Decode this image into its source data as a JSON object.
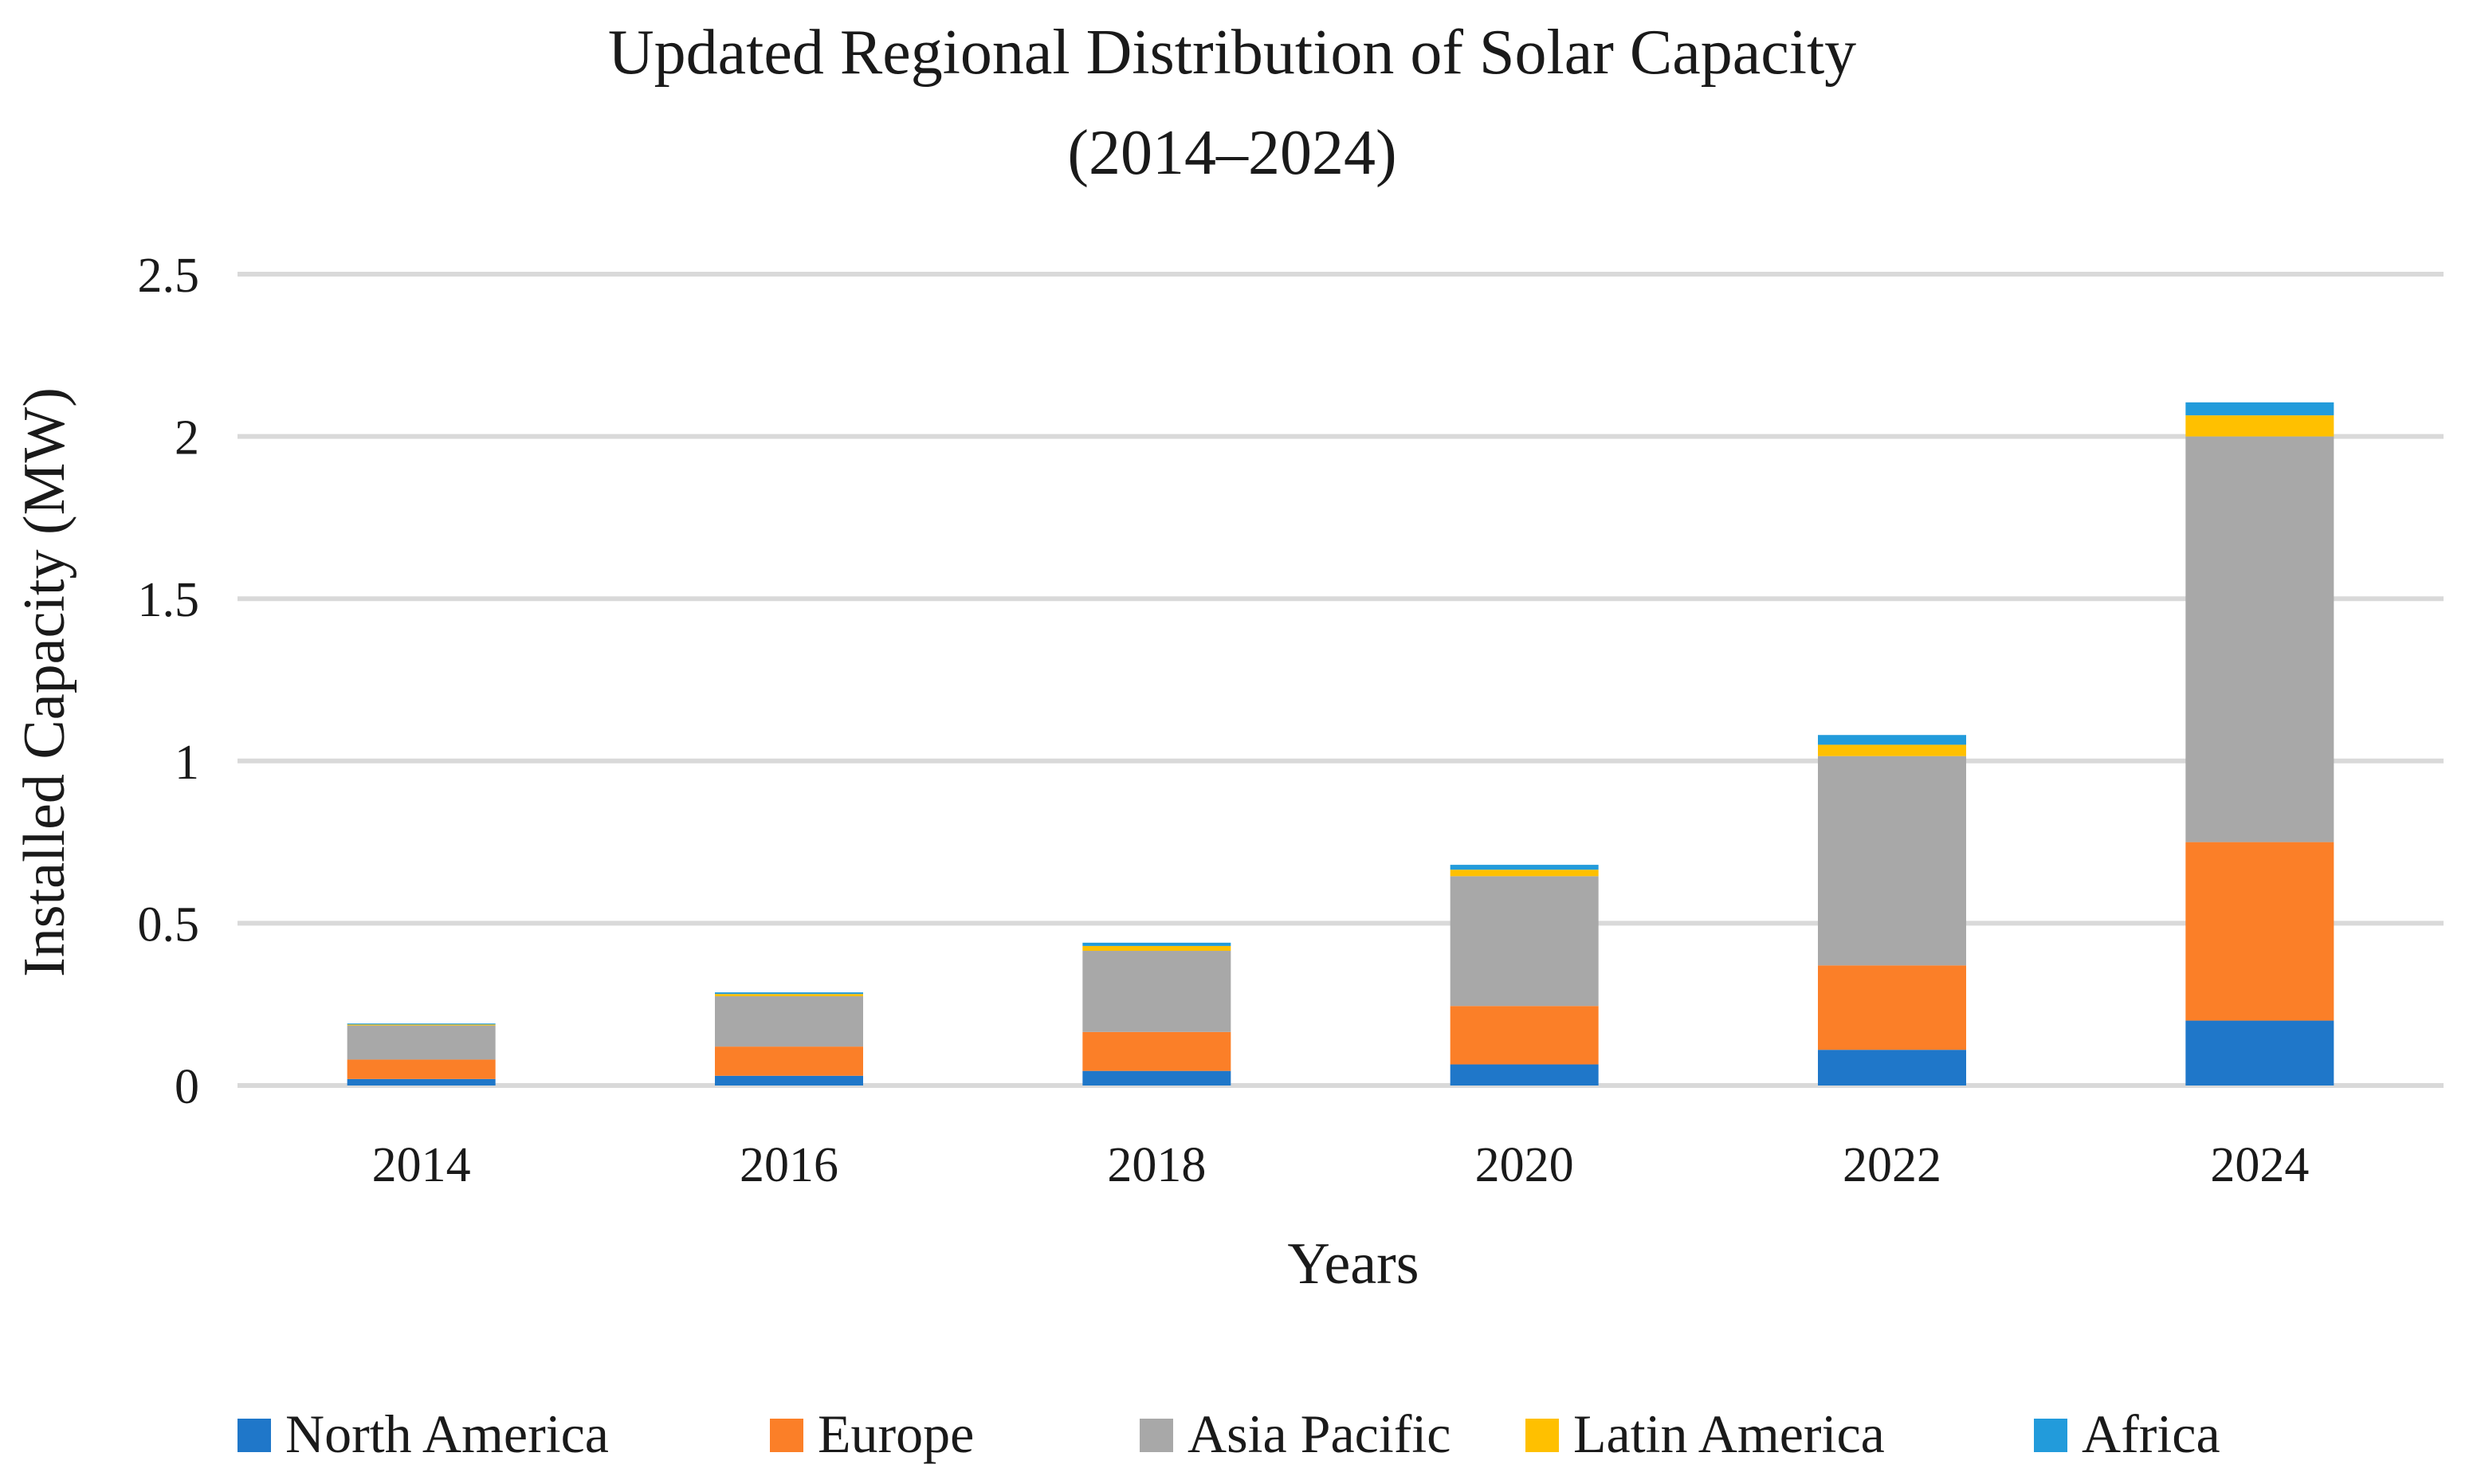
{
  "chart_data": {
    "type": "bar",
    "stacked": true,
    "title": "Updated Regional Distribution of Solar Capacity",
    "subtitle": "(2014–2024)",
    "xlabel": "Years",
    "ylabel": "Installed Capacity (MW)",
    "ylim": [
      0,
      2.5
    ],
    "yticks": [
      0,
      0.5,
      1,
      1.5,
      2,
      2.5
    ],
    "ytick_labels": [
      "0",
      "0.5",
      "1",
      "1.5",
      "2",
      "2.5"
    ],
    "grid": true,
    "legend_position": "bottom",
    "categories": [
      "2014",
      "2016",
      "2018",
      "2020",
      "2022",
      "2024"
    ],
    "series": [
      {
        "name": "North America",
        "color": "#1F77C9",
        "values": [
          0.02,
          0.03,
          0.045,
          0.065,
          0.11,
          0.2
        ]
      },
      {
        "name": "Europe",
        "color": "#FB7F28",
        "values": [
          0.06,
          0.09,
          0.12,
          0.18,
          0.26,
          0.55
        ]
      },
      {
        "name": "Asia Pacific",
        "color": "#A8A8A8",
        "values": [
          0.105,
          0.155,
          0.25,
          0.4,
          0.645,
          1.25
        ]
      },
      {
        "name": "Latin America",
        "color": "#FFC000",
        "values": [
          0.003,
          0.007,
          0.015,
          0.02,
          0.035,
          0.065
        ]
      },
      {
        "name": "Africa",
        "color": "#229BDB",
        "values": [
          0.003,
          0.005,
          0.01,
          0.015,
          0.03,
          0.04
        ]
      }
    ]
  }
}
